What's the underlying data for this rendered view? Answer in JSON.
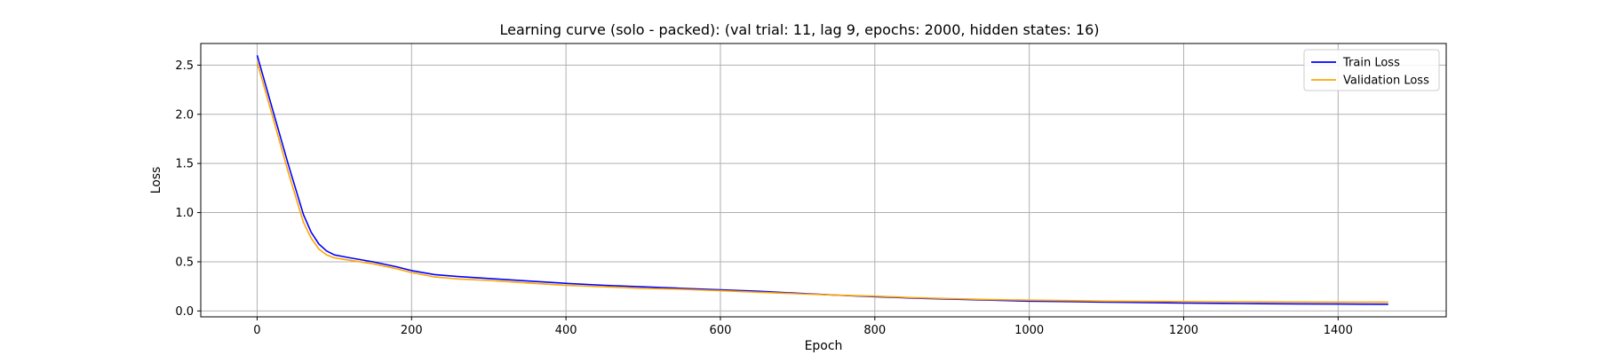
{
  "chart_data": {
    "type": "line",
    "title": "Learning curve (solo - packed): (val trial: 11, lag 9, epochs: 2000, hidden states: 16)",
    "xlabel": "Epoch",
    "ylabel": "Loss",
    "xlim": [
      -73,
      1540
    ],
    "ylim": [
      -0.06,
      2.72
    ],
    "xticks": [
      0,
      200,
      400,
      600,
      800,
      1000,
      1200,
      1400
    ],
    "yticks": [
      0.0,
      0.5,
      1.0,
      1.5,
      2.0,
      2.5
    ],
    "xtick_labels": [
      "0",
      "200",
      "400",
      "600",
      "800",
      "1000",
      "1200",
      "1400"
    ],
    "ytick_labels": [
      "0.0",
      "0.5",
      "1.0",
      "1.5",
      "2.0",
      "2.5"
    ],
    "grid": true,
    "legend_position": "top-right",
    "series": [
      {
        "name": "Train Loss",
        "color": "#0000ff",
        "x": [
          0,
          20,
          40,
          60,
          70,
          80,
          90,
          100,
          120,
          150,
          180,
          200,
          230,
          260,
          300,
          350,
          400,
          450,
          500,
          550,
          600,
          650,
          700,
          750,
          800,
          850,
          900,
          950,
          1000,
          1050,
          1100,
          1150,
          1200,
          1250,
          1300,
          1350,
          1400,
          1465
        ],
        "y": [
          2.6,
          2.05,
          1.5,
          0.98,
          0.8,
          0.68,
          0.61,
          0.57,
          0.54,
          0.5,
          0.45,
          0.41,
          0.37,
          0.35,
          0.33,
          0.305,
          0.28,
          0.26,
          0.245,
          0.23,
          0.215,
          0.2,
          0.18,
          0.16,
          0.145,
          0.13,
          0.12,
          0.11,
          0.1,
          0.095,
          0.09,
          0.085,
          0.08,
          0.077,
          0.074,
          0.072,
          0.07,
          0.068
        ]
      },
      {
        "name": "Validation Loss",
        "color": "#ffa500",
        "x": [
          0,
          20,
          40,
          60,
          70,
          80,
          90,
          100,
          120,
          150,
          180,
          200,
          230,
          260,
          300,
          350,
          400,
          450,
          500,
          550,
          600,
          650,
          700,
          750,
          800,
          850,
          900,
          950,
          1000,
          1050,
          1100,
          1150,
          1200,
          1250,
          1300,
          1350,
          1400,
          1465
        ],
        "y": [
          2.53,
          1.98,
          1.42,
          0.9,
          0.74,
          0.63,
          0.57,
          0.54,
          0.515,
          0.48,
          0.43,
          0.39,
          0.345,
          0.325,
          0.31,
          0.285,
          0.26,
          0.245,
          0.23,
          0.22,
          0.205,
          0.19,
          0.175,
          0.16,
          0.15,
          0.135,
          0.125,
          0.115,
          0.11,
          0.105,
          0.1,
          0.097,
          0.095,
          0.093,
          0.092,
          0.091,
          0.09,
          0.09
        ]
      }
    ]
  }
}
